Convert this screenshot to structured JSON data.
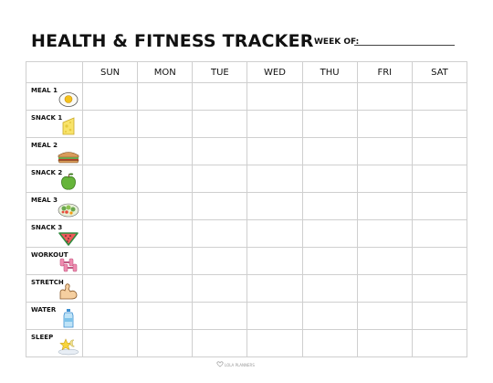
{
  "header": {
    "title": "HEALTH & FITNESS TRACKER",
    "week_label": "WEEK OF:"
  },
  "days": [
    "SUN",
    "MON",
    "TUE",
    "WED",
    "THU",
    "FRI",
    "SAT"
  ],
  "rows": [
    {
      "label": "MEAL 1",
      "icon": "fried-egg-icon"
    },
    {
      "label": "SNACK 1",
      "icon": "cheese-icon"
    },
    {
      "label": "MEAL 2",
      "icon": "sandwich-icon"
    },
    {
      "label": "SNACK 2",
      "icon": "apple-icon"
    },
    {
      "label": "MEAL 3",
      "icon": "salad-icon"
    },
    {
      "label": "SNACK 3",
      "icon": "watermelon-icon"
    },
    {
      "label": "WORKOUT",
      "icon": "dumbbells-icon"
    },
    {
      "label": "STRETCH",
      "icon": "flexed-arm-icon"
    },
    {
      "label": "WATER",
      "icon": "water-bottle-icon"
    },
    {
      "label": "SLEEP",
      "icon": "moon-star-icon"
    }
  ],
  "footer": {
    "brand": "LOLA PLANNERS"
  }
}
